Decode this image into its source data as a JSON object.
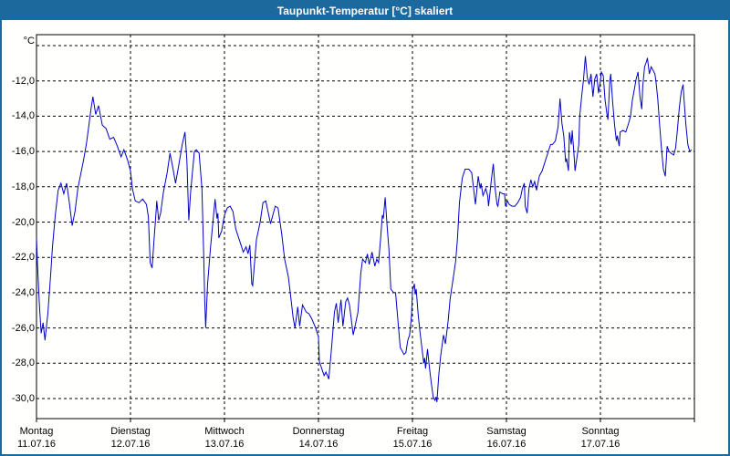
{
  "window": {
    "title": "Taupunkt-Temperatur [°C] skaliert"
  },
  "colors": {
    "titlebar_bg": "#1c699e",
    "window_border": "#1c699e",
    "line": "#0000c8",
    "grid": "#000000",
    "plot_border": "#000000",
    "background": "#fffffe",
    "label_text": "#000000"
  },
  "chart_data": {
    "type": "line",
    "title": "Taupunkt-Temperatur [°C] skaliert",
    "y_unit_label": "°C",
    "grid": "dashed",
    "legend": "none",
    "y_axis": {
      "tick_labels": [
        "-12,0",
        "-14,0",
        "-16,0",
        "-18,0",
        "-20,0",
        "-22,0",
        "-24,0",
        "-26,0",
        "-28,0",
        "-30,0"
      ],
      "tick_values": [
        -12,
        -14,
        -16,
        -18,
        -20,
        -22,
        -24,
        -26,
        -28,
        -30
      ],
      "grid_values": [
        -10,
        -12,
        -14,
        -16,
        -18,
        -20,
        -22,
        -24,
        -26,
        -28,
        -30
      ],
      "range_shown": [
        -31.1,
        -9.4
      ]
    },
    "x_axis": {
      "days": [
        {
          "name": "Montag",
          "date": "11.07.16"
        },
        {
          "name": "Dienstag",
          "date": "12.07.16"
        },
        {
          "name": "Mittwoch",
          "date": "13.07.16"
        },
        {
          "name": "Donnerstag",
          "date": "14.07.16"
        },
        {
          "name": "Freitag",
          "date": "15.07.16"
        },
        {
          "name": "Samstag",
          "date": "16.07.16"
        },
        {
          "name": "Sonntag",
          "date": "17.07.16"
        }
      ],
      "range_days": [
        0,
        7
      ]
    },
    "series": [
      {
        "name": "Taupunkt-Temperatur",
        "color": "#0000c8",
        "x_unit": "days (0 = Montag 11.07.16)",
        "points": [
          [
            0,
            -20.9
          ],
          [
            0.01,
            -22.3
          ],
          [
            0.03,
            -24.6
          ],
          [
            0.05,
            -26.3
          ],
          [
            0.07,
            -25.7
          ],
          [
            0.09,
            -26.7
          ],
          [
            0.12,
            -25.2
          ],
          [
            0.15,
            -23
          ],
          [
            0.17,
            -21.4
          ],
          [
            0.2,
            -19.6
          ],
          [
            0.23,
            -18.2
          ],
          [
            0.26,
            -17.8
          ],
          [
            0.29,
            -18.4
          ],
          [
            0.32,
            -17.8
          ],
          [
            0.35,
            -18.9
          ],
          [
            0.38,
            -20.2
          ],
          [
            0.41,
            -19.4
          ],
          [
            0.44,
            -18.1
          ],
          [
            0.47,
            -17.3
          ],
          [
            0.5,
            -16.5
          ],
          [
            0.53,
            -15.6
          ],
          [
            0.56,
            -14.4
          ],
          [
            0.58,
            -13.6
          ],
          [
            0.6,
            -12.9
          ],
          [
            0.63,
            -13.9
          ],
          [
            0.66,
            -13.4
          ],
          [
            0.7,
            -14.5
          ],
          [
            0.74,
            -14.7
          ],
          [
            0.78,
            -15.3
          ],
          [
            0.82,
            -15.2
          ],
          [
            0.86,
            -15.7
          ],
          [
            0.9,
            -16.3
          ],
          [
            0.93,
            -15.9
          ],
          [
            0.97,
            -16.5
          ],
          [
            1,
            -17.1
          ],
          [
            1.02,
            -18.1
          ],
          [
            1.05,
            -18.8
          ],
          [
            1.09,
            -18.9
          ],
          [
            1.13,
            -18.7
          ],
          [
            1.17,
            -19
          ],
          [
            1.19,
            -19.7
          ],
          [
            1.21,
            -22.3
          ],
          [
            1.23,
            -22.6
          ],
          [
            1.25,
            -21
          ],
          [
            1.27,
            -19.6
          ],
          [
            1.28,
            -18.8
          ],
          [
            1.3,
            -19.9
          ],
          [
            1.32,
            -19.5
          ],
          [
            1.35,
            -18.3
          ],
          [
            1.39,
            -17.2
          ],
          [
            1.42,
            -16.1
          ],
          [
            1.45,
            -16.9
          ],
          [
            1.48,
            -17.8
          ],
          [
            1.51,
            -16.9
          ],
          [
            1.55,
            -15.6
          ],
          [
            1.58,
            -14.9
          ],
          [
            1.6,
            -16.5
          ],
          [
            1.62,
            -19.9
          ],
          [
            1.64,
            -18.3
          ],
          [
            1.68,
            -16
          ],
          [
            1.7,
            -15.9
          ],
          [
            1.73,
            -16.1
          ],
          [
            1.76,
            -18.1
          ],
          [
            1.78,
            -22
          ],
          [
            1.79,
            -24.5
          ],
          [
            1.8,
            -26
          ],
          [
            1.82,
            -23.5
          ],
          [
            1.85,
            -21.5
          ],
          [
            1.9,
            -18.7
          ],
          [
            1.92,
            -19.8
          ],
          [
            1.93,
            -19.5
          ],
          [
            1.94,
            -20.9
          ],
          [
            1.97,
            -20.5
          ],
          [
            2,
            -19.6
          ],
          [
            2.03,
            -19.2
          ],
          [
            2.06,
            -19.1
          ],
          [
            2.09,
            -19.4
          ],
          [
            2.12,
            -20.4
          ],
          [
            2.17,
            -21.2
          ],
          [
            2.2,
            -21.7
          ],
          [
            2.23,
            -21.4
          ],
          [
            2.25,
            -21.8
          ],
          [
            2.27,
            -21.3
          ],
          [
            2.29,
            -23.5
          ],
          [
            2.3,
            -23.6
          ],
          [
            2.34,
            -21
          ],
          [
            2.38,
            -20
          ],
          [
            2.41,
            -18.9
          ],
          [
            2.44,
            -18.8
          ],
          [
            2.49,
            -20.1
          ],
          [
            2.54,
            -19.1
          ],
          [
            2.57,
            -19.2
          ],
          [
            2.61,
            -20.7
          ],
          [
            2.64,
            -22.1
          ],
          [
            2.68,
            -23.1
          ],
          [
            2.7,
            -24
          ],
          [
            2.73,
            -25.4
          ],
          [
            2.75,
            -26
          ],
          [
            2.78,
            -24.8
          ],
          [
            2.8,
            -25.9
          ],
          [
            2.83,
            -24.7
          ],
          [
            2.87,
            -25.1
          ],
          [
            2.9,
            -25.2
          ],
          [
            2.93,
            -25.5
          ],
          [
            2.97,
            -26
          ],
          [
            3,
            -26.5
          ],
          [
            3.01,
            -27.9
          ],
          [
            3.06,
            -28.7
          ],
          [
            3.08,
            -28.5
          ],
          [
            3.11,
            -28.9
          ],
          [
            3.14,
            -27.1
          ],
          [
            3.17,
            -25.1
          ],
          [
            3.19,
            -24.6
          ],
          [
            3.21,
            -25.7
          ],
          [
            3.24,
            -24.4
          ],
          [
            3.26,
            -25.9
          ],
          [
            3.29,
            -24.5
          ],
          [
            3.31,
            -24.3
          ],
          [
            3.33,
            -24.7
          ],
          [
            3.37,
            -26.4
          ],
          [
            3.42,
            -25.1
          ],
          [
            3.45,
            -22.9
          ],
          [
            3.47,
            -22.1
          ],
          [
            3.5,
            -22.3
          ],
          [
            3.52,
            -21.8
          ],
          [
            3.54,
            -22.4
          ],
          [
            3.57,
            -21.7
          ],
          [
            3.6,
            -22.5
          ],
          [
            3.62,
            -22.1
          ],
          [
            3.64,
            -22.3
          ],
          [
            3.66,
            -21
          ],
          [
            3.68,
            -19.6
          ],
          [
            3.69,
            -19.8
          ],
          [
            3.71,
            -18.6
          ],
          [
            3.73,
            -20.2
          ],
          [
            3.75,
            -21.6
          ],
          [
            3.77,
            -23.8
          ],
          [
            3.8,
            -24
          ],
          [
            3.82,
            -24
          ],
          [
            3.85,
            -25.9
          ],
          [
            3.87,
            -27.1
          ],
          [
            3.91,
            -27.5
          ],
          [
            3.93,
            -27.4
          ],
          [
            3.95,
            -26.7
          ],
          [
            3.97,
            -26.4
          ],
          [
            3.99,
            -25.3
          ],
          [
            4,
            -23.9
          ],
          [
            4.02,
            -23.5
          ],
          [
            4.03,
            -24.1
          ],
          [
            4.04,
            -23.8
          ],
          [
            4.06,
            -25.2
          ],
          [
            4.08,
            -26.2
          ],
          [
            4.1,
            -27.1
          ],
          [
            4.12,
            -28
          ],
          [
            4.13,
            -27.7
          ],
          [
            4.14,
            -28.3
          ],
          [
            4.16,
            -27.2
          ],
          [
            4.18,
            -28.2
          ],
          [
            4.2,
            -29.1
          ],
          [
            4.22,
            -29.9
          ],
          [
            4.24,
            -30.1
          ],
          [
            4.25,
            -29.9
          ],
          [
            4.26,
            -30.2
          ],
          [
            4.28,
            -28.7
          ],
          [
            4.3,
            -27.6
          ],
          [
            4.33,
            -26.4
          ],
          [
            4.35,
            -26.9
          ],
          [
            4.38,
            -25.6
          ],
          [
            4.4,
            -24.4
          ],
          [
            4.43,
            -23.3
          ],
          [
            4.46,
            -22.2
          ],
          [
            4.48,
            -20.9
          ],
          [
            4.5,
            -18.9
          ],
          [
            4.53,
            -17.5
          ],
          [
            4.56,
            -17
          ],
          [
            4.6,
            -17
          ],
          [
            4.63,
            -17.2
          ],
          [
            4.65,
            -18.1
          ],
          [
            4.67,
            -19
          ],
          [
            4.7,
            -17.4
          ],
          [
            4.72,
            -18.1
          ],
          [
            4.73,
            -17.8
          ],
          [
            4.75,
            -18.5
          ],
          [
            4.78,
            -18.1
          ],
          [
            4.8,
            -18.5
          ],
          [
            4.81,
            -19.1
          ],
          [
            4.84,
            -17.6
          ],
          [
            4.86,
            -16.7
          ],
          [
            4.88,
            -18.1
          ],
          [
            4.9,
            -19
          ],
          [
            4.91,
            -19.1
          ],
          [
            4.93,
            -18.3
          ],
          [
            4.96,
            -18.4
          ],
          [
            4.98,
            -18.4
          ],
          [
            4.99,
            -19.1
          ],
          [
            5.01,
            -18.8
          ],
          [
            5.03,
            -19
          ],
          [
            5.06,
            -19.1
          ],
          [
            5.09,
            -19.1
          ],
          [
            5.12,
            -18.9
          ],
          [
            5.15,
            -18.6
          ],
          [
            5.17,
            -18.1
          ],
          [
            5.19,
            -17.8
          ],
          [
            5.2,
            -19.1
          ],
          [
            5.22,
            -19.5
          ],
          [
            5.24,
            -18.1
          ],
          [
            5.26,
            -17.6
          ],
          [
            5.28,
            -18
          ],
          [
            5.3,
            -17.7
          ],
          [
            5.32,
            -18.2
          ],
          [
            5.35,
            -17.4
          ],
          [
            5.38,
            -17.1
          ],
          [
            5.41,
            -16.6
          ],
          [
            5.44,
            -16.1
          ],
          [
            5.47,
            -15.6
          ],
          [
            5.49,
            -15.6
          ],
          [
            5.52,
            -15.4
          ],
          [
            5.55,
            -14.6
          ],
          [
            5.57,
            -13
          ],
          [
            5.59,
            -14.4
          ],
          [
            5.61,
            -15.1
          ],
          [
            5.63,
            -16.6
          ],
          [
            5.64,
            -16.4
          ],
          [
            5.66,
            -17.1
          ],
          [
            5.67,
            -14.9
          ],
          [
            5.69,
            -15.6
          ],
          [
            5.7,
            -14.8
          ],
          [
            5.72,
            -16.3
          ],
          [
            5.73,
            -17.1
          ],
          [
            5.77,
            -15.6
          ],
          [
            5.78,
            -14
          ],
          [
            5.8,
            -12.9
          ],
          [
            5.82,
            -11.9
          ],
          [
            5.84,
            -10.6
          ],
          [
            5.86,
            -11.8
          ],
          [
            5.88,
            -12.2
          ],
          [
            5.9,
            -11.6
          ],
          [
            5.92,
            -12.9
          ],
          [
            5.94,
            -11.9
          ],
          [
            5.96,
            -11.6
          ],
          [
            5.98,
            -12.7
          ],
          [
            6,
            -12
          ],
          [
            6.01,
            -11.5
          ],
          [
            6.03,
            -11.7
          ],
          [
            6.05,
            -13.1
          ],
          [
            6.07,
            -13.9
          ],
          [
            6.08,
            -14.2
          ],
          [
            6.1,
            -12
          ],
          [
            6.11,
            -11.6
          ],
          [
            6.13,
            -13.2
          ],
          [
            6.15,
            -14.5
          ],
          [
            6.17,
            -15.4
          ],
          [
            6.18,
            -15.1
          ],
          [
            6.2,
            -15.7
          ],
          [
            6.21,
            -14.9
          ],
          [
            6.24,
            -14.8
          ],
          [
            6.27,
            -14.9
          ],
          [
            6.3,
            -14.4
          ],
          [
            6.32,
            -14
          ],
          [
            6.34,
            -13.1
          ],
          [
            6.36,
            -12.5
          ],
          [
            6.38,
            -11.9
          ],
          [
            6.4,
            -11.5
          ],
          [
            6.42,
            -12.9
          ],
          [
            6.44,
            -13.6
          ],
          [
            6.45,
            -12.3
          ],
          [
            6.47,
            -11.2
          ],
          [
            6.49,
            -10.9
          ],
          [
            6.5,
            -10.7
          ],
          [
            6.52,
            -11.6
          ],
          [
            6.54,
            -11.2
          ],
          [
            6.56,
            -11.4
          ],
          [
            6.58,
            -11.6
          ],
          [
            6.59,
            -12
          ],
          [
            6.61,
            -13
          ],
          [
            6.63,
            -14.5
          ],
          [
            6.65,
            -15.9
          ],
          [
            6.67,
            -17
          ],
          [
            6.69,
            -17.4
          ],
          [
            6.71,
            -15.7
          ],
          [
            6.73,
            -16
          ],
          [
            6.75,
            -16.1
          ],
          [
            6.78,
            -16.2
          ],
          [
            6.8,
            -15.8
          ],
          [
            6.82,
            -14.7
          ],
          [
            6.84,
            -13.5
          ],
          [
            6.86,
            -12.6
          ],
          [
            6.88,
            -12.2
          ],
          [
            6.89,
            -13.1
          ],
          [
            6.91,
            -14.5
          ],
          [
            6.93,
            -15.6
          ],
          [
            6.95,
            -16
          ],
          [
            6.97,
            -15.9
          ]
        ]
      }
    ]
  }
}
